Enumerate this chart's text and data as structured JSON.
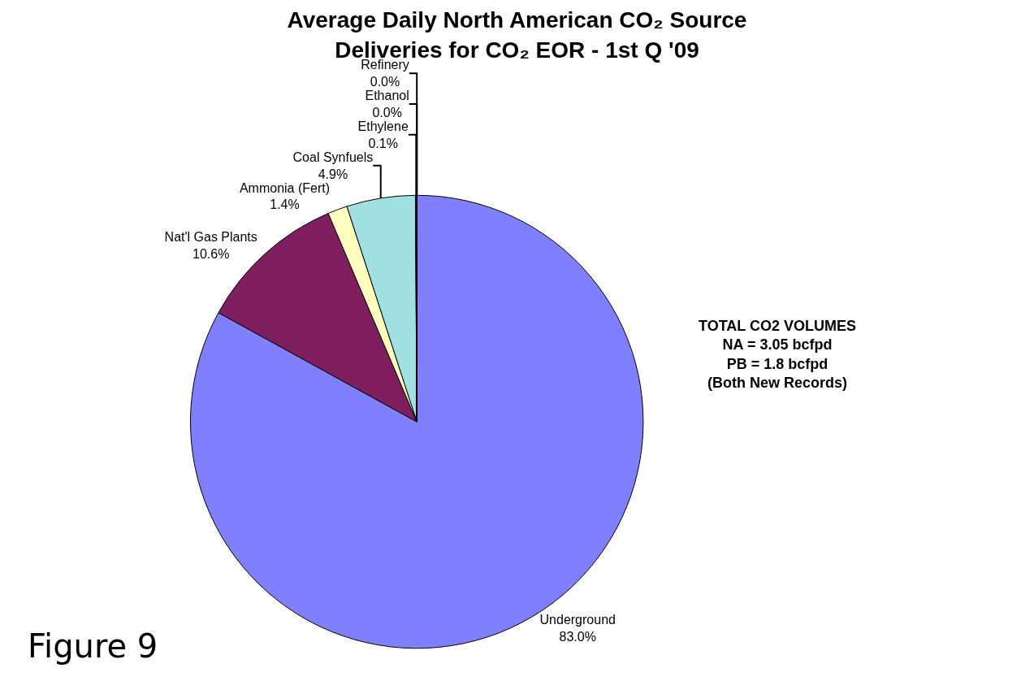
{
  "chart_data": {
    "type": "pie",
    "title": "Average Daily North American CO₂ Source Deliveries for CO₂ EOR - 1st Q '09",
    "categories": [
      "Underground",
      "Nat'l Gas Plants",
      "Ammonia (Fert)",
      "Coal Synfuels",
      "Ethylene",
      "Ethanol",
      "Refinery"
    ],
    "values": [
      83.0,
      10.6,
      1.4,
      4.9,
      0.1,
      0.0,
      0.0
    ],
    "value_labels": [
      "83.0%",
      "10.6%",
      "1.4%",
      "4.9%",
      "0.1%",
      "0.0%",
      "0.0%"
    ],
    "colors": [
      "#8080ff",
      "#7f1f5f",
      "#ffffc0",
      "#a0e0e0",
      "#339966",
      "#ffc000",
      "#c0c0c0"
    ],
    "legend": false,
    "annotations": [
      "TOTAL CO2 VOLUMES",
      "NA = 3.05 bcfpd",
      "PB = 1.8 bcfpd",
      "(Both New Records)",
      "Figure 9"
    ]
  }
}
